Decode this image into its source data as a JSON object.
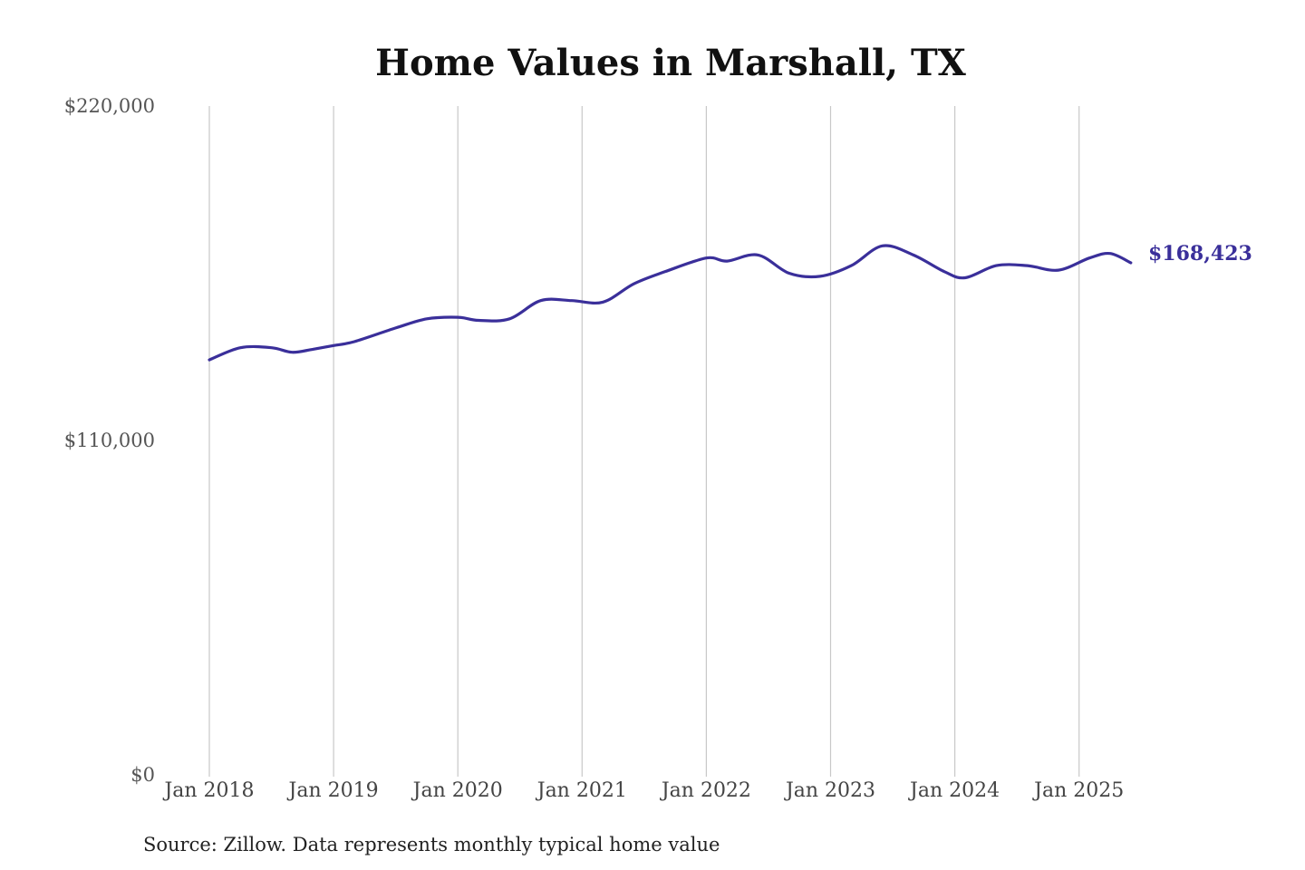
{
  "colors": {
    "series": "#3a2f9a",
    "gridline": "#c8c8c8",
    "background": "#ffffff"
  },
  "source_note": "Source: Zillow. Data represents monthly typical home value",
  "chart_data": {
    "type": "line",
    "title": "Home Values in Marshall, TX",
    "xlabel": "",
    "ylabel": "",
    "ylim": [
      0,
      220000
    ],
    "xlim": [
      "2018-01",
      "2025-06"
    ],
    "grid": "vertical lines at each January",
    "legend": "none",
    "y_ticks": [
      {
        "value": 0,
        "label": "$0"
      },
      {
        "value": 110000,
        "label": "$110,000"
      },
      {
        "value": 220000,
        "label": "$220,000"
      }
    ],
    "x_ticks": [
      {
        "value": "2018-01",
        "label": "Jan 2018"
      },
      {
        "value": "2019-01",
        "label": "Jan 2019"
      },
      {
        "value": "2020-01",
        "label": "Jan 2020"
      },
      {
        "value": "2021-01",
        "label": "Jan 2021"
      },
      {
        "value": "2022-01",
        "label": "Jan 2022"
      },
      {
        "value": "2023-01",
        "label": "Jan 2023"
      },
      {
        "value": "2024-01",
        "label": "Jan 2024"
      },
      {
        "value": "2025-01",
        "label": "Jan 2025"
      }
    ],
    "end_label": "$168,423",
    "series": [
      {
        "points": [
          [
            "2018-01",
            136500
          ],
          [
            "2018-04",
            140500
          ],
          [
            "2018-07",
            140500
          ],
          [
            "2018-09",
            139000
          ],
          [
            "2018-11",
            140000
          ],
          [
            "2019-01",
            141200
          ],
          [
            "2019-03",
            142500
          ],
          [
            "2019-07",
            147000
          ],
          [
            "2019-10",
            150000
          ],
          [
            "2020-01",
            150500
          ],
          [
            "2020-03",
            149500
          ],
          [
            "2020-06",
            150000
          ],
          [
            "2020-09",
            156000
          ],
          [
            "2020-12",
            156000
          ],
          [
            "2021-03",
            155500
          ],
          [
            "2021-06",
            161500
          ],
          [
            "2021-09",
            165500
          ],
          [
            "2022-01",
            170000
          ],
          [
            "2022-03",
            169000
          ],
          [
            "2022-06",
            171000
          ],
          [
            "2022-09",
            165000
          ],
          [
            "2022-12",
            164000
          ],
          [
            "2023-03",
            167500
          ],
          [
            "2023-06",
            174000
          ],
          [
            "2023-09",
            171000
          ],
          [
            "2023-12",
            165500
          ],
          [
            "2024-02",
            163500
          ],
          [
            "2024-05",
            167500
          ],
          [
            "2024-08",
            167500
          ],
          [
            "2024-11",
            166000
          ],
          [
            "2025-02",
            170000
          ],
          [
            "2025-04",
            171500
          ],
          [
            "2025-06",
            168423
          ]
        ]
      }
    ]
  }
}
